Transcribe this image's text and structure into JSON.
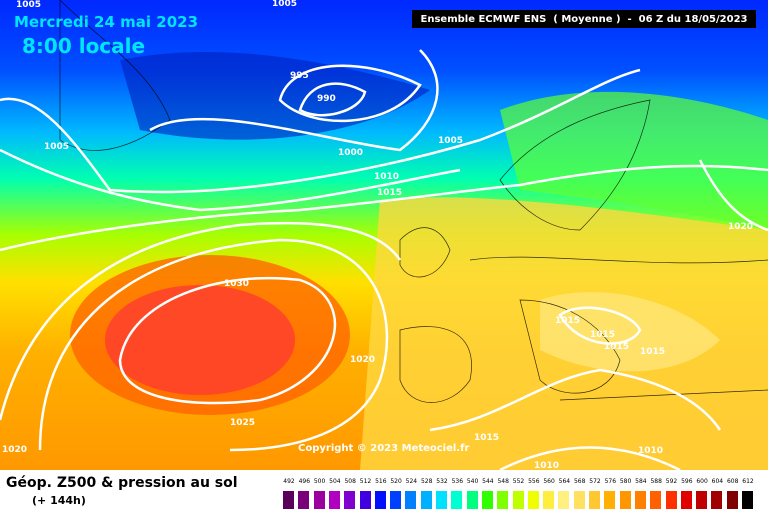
{
  "header": {
    "date": "Mercredi 24 mai 2023",
    "time": "8:00 locale",
    "run_info": "Ensemble ECMWF ENS  ( Moyenne )  -  06 Z du 18/05/2023"
  },
  "footer": {
    "title": "Géop. Z500 & pression au sol",
    "subtitle": "(+ 144h)",
    "copyright": "Copyright © 2023 Meteociel.fr"
  },
  "isobar_labels": [
    "1005",
    "1000",
    "995",
    "990",
    "1005",
    "1000",
    "1005",
    "1010",
    "1015",
    "1020",
    "1030",
    "1020",
    "1025",
    "1020",
    "1015",
    "1015",
    "1015",
    "1015",
    "1015",
    "1010",
    "1010"
  ],
  "legend": {
    "values": [
      "492",
      "496",
      "500",
      "504",
      "508",
      "512",
      "516",
      "520",
      "524",
      "528",
      "532",
      "536",
      "540",
      "544",
      "548",
      "552",
      "556",
      "560",
      "564",
      "568",
      "572",
      "576",
      "580",
      "584",
      "588",
      "592",
      "596",
      "600",
      "604",
      "608",
      "612"
    ],
    "colors": [
      "#5a005a",
      "#7a007a",
      "#9a00a0",
      "#b000c0",
      "#8000d0",
      "#4000e0",
      "#0010ff",
      "#0040ff",
      "#0080ff",
      "#00b0ff",
      "#00e0ff",
      "#00ffd0",
      "#00ff80",
      "#30ff00",
      "#80ff00",
      "#c0ff00",
      "#f0ff00",
      "#ffee40",
      "#fff080",
      "#ffe060",
      "#ffc830",
      "#ffb000",
      "#ff9800",
      "#ff8000",
      "#ff6000",
      "#ff3000",
      "#e00000",
      "#c00000",
      "#a00000",
      "#800000",
      "#000000"
    ]
  }
}
